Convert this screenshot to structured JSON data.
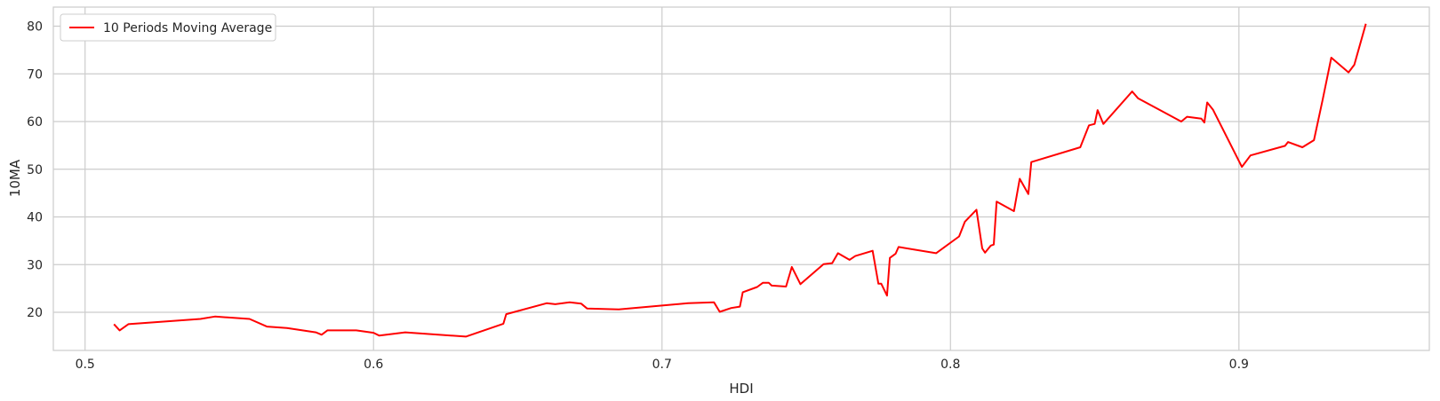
{
  "chart_data": {
    "type": "line",
    "xlabel": "HDI",
    "ylabel": "10MA",
    "xlim": [
      0.489,
      0.966
    ],
    "ylim": [
      12,
      84
    ],
    "xticks": [
      0.5,
      0.6,
      0.7,
      0.8,
      0.9
    ],
    "xtick_labels": [
      "0.5",
      "0.6",
      "0.7",
      "0.8",
      "0.9"
    ],
    "yticks": [
      20,
      30,
      40,
      50,
      60,
      70,
      80
    ],
    "ytick_labels": [
      "20",
      "30",
      "40",
      "50",
      "60",
      "70",
      "80"
    ],
    "grid": true,
    "legend_position": "top-left",
    "series": [
      {
        "name": "10 Periods Moving Average",
        "color": "#ff0000",
        "x": [
          0.51,
          0.512,
          0.515,
          0.54,
          0.545,
          0.557,
          0.563,
          0.57,
          0.58,
          0.582,
          0.584,
          0.594,
          0.6,
          0.602,
          0.611,
          0.632,
          0.645,
          0.646,
          0.66,
          0.663,
          0.668,
          0.672,
          0.674,
          0.685,
          0.709,
          0.718,
          0.72,
          0.724,
          0.727,
          0.728,
          0.733,
          0.735,
          0.737,
          0.738,
          0.743,
          0.745,
          0.748,
          0.756,
          0.759,
          0.761,
          0.765,
          0.767,
          0.773,
          0.775,
          0.776,
          0.778,
          0.779,
          0.781,
          0.782,
          0.795,
          0.803,
          0.805,
          0.809,
          0.811,
          0.812,
          0.814,
          0.815,
          0.816,
          0.822,
          0.824,
          0.827,
          0.828,
          0.845,
          0.848,
          0.85,
          0.851,
          0.853,
          0.863,
          0.865,
          0.88,
          0.882,
          0.887,
          0.888,
          0.889,
          0.891,
          0.901,
          0.904,
          0.916,
          0.917,
          0.922,
          0.926,
          0.929,
          0.932,
          0.938,
          0.94,
          0.944
        ],
        "y": [
          17.5,
          16.2,
          17.5,
          18.6,
          19.1,
          18.6,
          17.0,
          16.7,
          15.8,
          15.3,
          16.2,
          16.2,
          15.7,
          15.1,
          15.8,
          14.9,
          17.6,
          19.6,
          21.9,
          21.7,
          22.1,
          21.8,
          20.8,
          20.6,
          21.9,
          22.1,
          20.1,
          20.9,
          21.2,
          24.2,
          25.3,
          26.2,
          26.2,
          25.6,
          25.4,
          29.5,
          25.9,
          30.1,
          30.3,
          32.4,
          31.0,
          31.8,
          32.9,
          26.0,
          26.0,
          23.5,
          31.4,
          32.3,
          33.7,
          32.4,
          35.9,
          39.0,
          41.5,
          33.4,
          32.5,
          34.0,
          34.2,
          43.2,
          41.2,
          48.0,
          44.8,
          51.5,
          54.6,
          59.2,
          59.5,
          62.4,
          59.5,
          66.3,
          64.9,
          60.0,
          61.0,
          60.6,
          59.8,
          64.0,
          62.5,
          50.5,
          52.9,
          54.9,
          55.7,
          54.6,
          56.1,
          64.5,
          73.4,
          70.3,
          71.9,
          80.5
        ]
      }
    ]
  }
}
